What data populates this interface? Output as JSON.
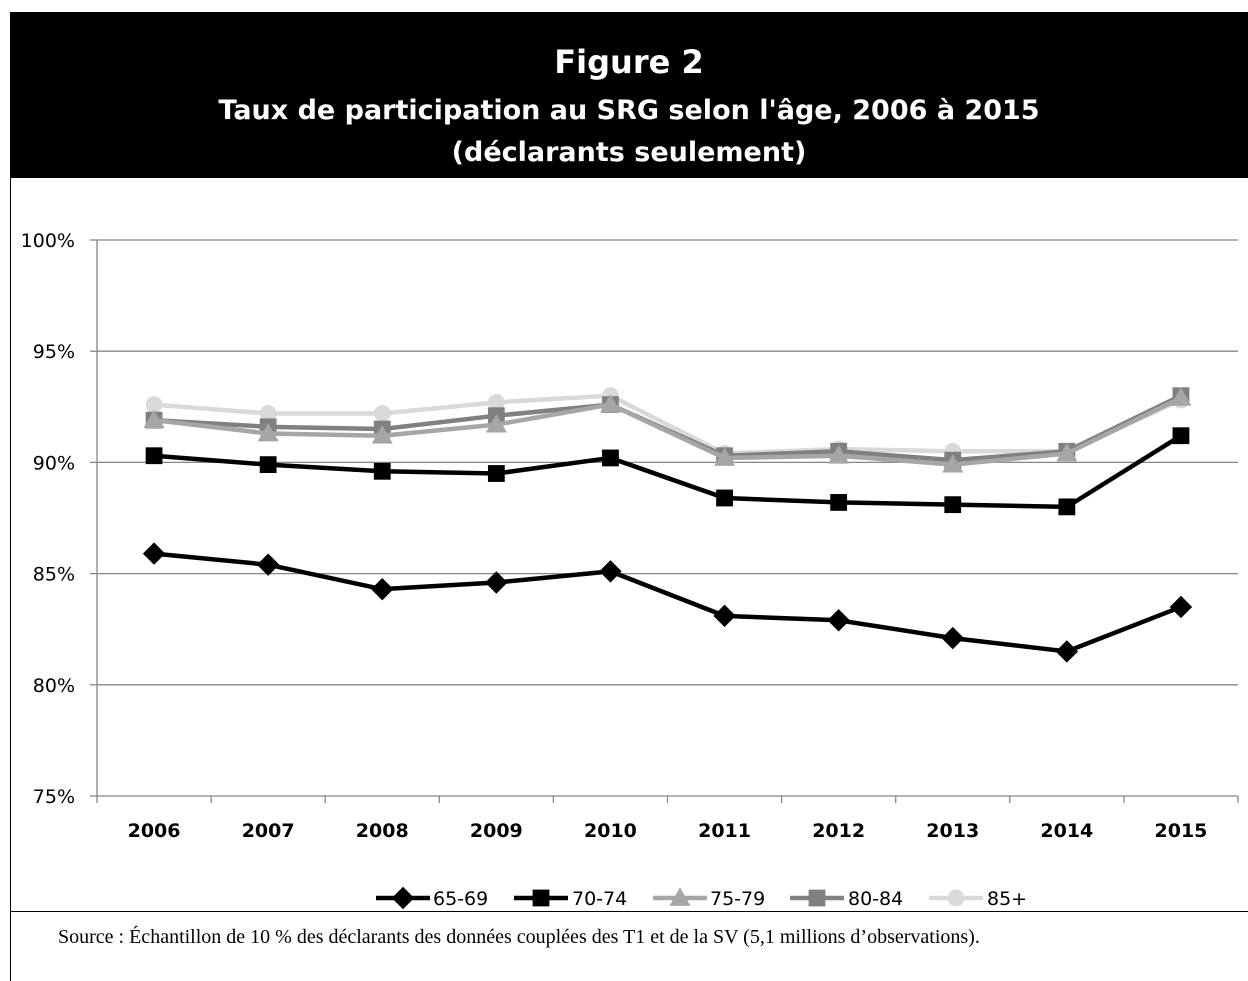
{
  "header": {
    "figure_label": "Figure 2",
    "title": "Taux de participation au SRG selon l'âge, 2006 à 2015",
    "subtitle": "(déclarants seulement)"
  },
  "source": "Source : Échantillon de 10 % des déclarants des données couplées des T1 et de la SV (5,1 millions d’observations).",
  "chart_data": {
    "type": "line",
    "title": "Taux de participation au SRG selon l'âge, 2006 à 2015",
    "x": [
      "2006",
      "2007",
      "2008",
      "2009",
      "2010",
      "2011",
      "2012",
      "2013",
      "2014",
      "2015"
    ],
    "ylim": [
      75,
      100
    ],
    "yticks": [
      75,
      80,
      85,
      90,
      95,
      100
    ],
    "ytick_labels": [
      "75%",
      "80%",
      "85%",
      "90%",
      "95%",
      "100%"
    ],
    "grid": true,
    "legend_position": "bottom",
    "series": [
      {
        "name": "65-69",
        "color": "#000000",
        "marker": "diamond",
        "values": [
          85.9,
          85.4,
          84.3,
          84.6,
          85.1,
          83.1,
          82.9,
          82.1,
          81.5,
          83.5
        ]
      },
      {
        "name": "70-74",
        "color": "#000000",
        "marker": "square",
        "values": [
          90.3,
          89.9,
          89.6,
          89.5,
          90.2,
          88.4,
          88.2,
          88.1,
          88.0,
          91.2
        ]
      },
      {
        "name": "75-79",
        "color": "#a6a6a6",
        "marker": "triangle",
        "values": [
          91.9,
          91.3,
          91.2,
          91.7,
          92.6,
          90.2,
          90.3,
          89.9,
          90.4,
          92.9
        ]
      },
      {
        "name": "80-84",
        "color": "#808080",
        "marker": "square",
        "values": [
          91.9,
          91.6,
          91.5,
          92.1,
          92.6,
          90.3,
          90.5,
          90.1,
          90.5,
          93.0
        ]
      },
      {
        "name": "85+",
        "color": "#d9d9d9",
        "marker": "circle",
        "values": [
          92.6,
          92.2,
          92.2,
          92.7,
          93.0,
          90.4,
          90.6,
          90.5,
          90.5,
          92.8
        ]
      }
    ]
  }
}
